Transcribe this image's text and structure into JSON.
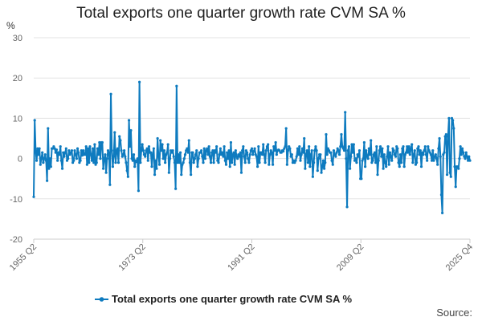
{
  "page": {
    "title": "Total exports one quarter growth rate CVM SA %"
  },
  "chart_data": {
    "type": "line",
    "title": "Total exports one quarter growth rate CVM SA %",
    "ylabel": "%",
    "xlabel": "",
    "ylim": [
      -20,
      30
    ],
    "yticks": [
      30,
      20,
      10,
      0,
      -10,
      -20
    ],
    "x_start": "1955 Q2",
    "x_end": "2025 Q4",
    "xtick_labels": [
      "1955 Q2",
      "1973 Q2",
      "1991 Q2",
      "2009 Q2",
      "2025 Q4"
    ],
    "grid": true,
    "legend_position": "bottom",
    "line_color": "#0e7bbf",
    "series": [
      {
        "name": "Total exports one quarter growth rate CVM SA %",
        "values": [
          -9.5,
          9.5,
          2,
          -0.5,
          2.5,
          1,
          2.5,
          -1.5,
          0,
          1.5,
          -1,
          0,
          1,
          -0.5,
          -5.5,
          7.5,
          -2.5,
          0,
          -2,
          2.5,
          2.5,
          3,
          2.5,
          1.5,
          2.2,
          -0.5,
          1.5,
          1,
          3,
          -0.5,
          -2.5,
          1.5,
          0.5,
          1.5,
          2.5,
          -0.5,
          0,
          2,
          1,
          1.5,
          2,
          -1,
          -0.5,
          2,
          1,
          0,
          2.5,
          1.5,
          -1,
          -0.5,
          2,
          0.8,
          2,
          1,
          1,
          3,
          -1.5,
          2.5,
          -1,
          3,
          1,
          -0.5,
          2.5,
          -1,
          3.5,
          -1.5,
          -1,
          2.5,
          1,
          4,
          0,
          4,
          4,
          -2.5,
          0,
          1,
          -3.5,
          0,
          2,
          1.5,
          -6.5,
          16,
          2,
          -2,
          0.5,
          6.5,
          -1,
          2,
          2.5,
          -1,
          5.5,
          4.5,
          2,
          0.5,
          1,
          2,
          0.5,
          -1,
          -3,
          -4.5,
          9.5,
          3,
          7,
          0,
          -0.5,
          1,
          -2,
          -0.5,
          -0.8,
          0,
          -8,
          19,
          -1,
          2,
          3.5,
          2,
          1,
          0.5,
          2,
          2.5,
          -0.5,
          3,
          1.5,
          1.5,
          -2,
          1,
          2.5,
          -4,
          -0.5,
          -2.5,
          5,
          0.5,
          -1.5,
          4.5,
          2,
          3.5,
          0,
          2,
          -1,
          1,
          1.5,
          3.5,
          -3.5,
          0,
          2,
          1.5,
          2,
          0.5,
          -1,
          -7.5,
          18,
          -1,
          1,
          -1,
          1.5,
          -4,
          -1.5,
          -1,
          0,
          1,
          2,
          2.5,
          1.5,
          4.5,
          -1,
          -4,
          1.5,
          1.5,
          -1,
          0,
          1,
          2,
          -2,
          0,
          1.5,
          1.5,
          2,
          0.5,
          -1,
          2.5,
          0,
          2,
          2.5,
          1,
          3,
          0.5,
          -1,
          1.5,
          2,
          -1,
          2,
          1.5,
          3,
          -0.5,
          -1,
          1,
          2.5,
          1,
          1.5,
          0.5,
          3,
          -0.5,
          -1.5,
          1.5,
          0,
          2,
          -2,
          4,
          -1,
          1,
          1.5,
          -1.5,
          2,
          0.5,
          0,
          1,
          0.5,
          1.5,
          -3.5,
          2,
          3,
          0.5,
          -1,
          2,
          1.5,
          0,
          -1,
          1,
          2,
          2.5,
          1,
          1.8,
          2.5,
          1,
          0.5,
          -2,
          3,
          -1,
          1.5,
          1.5,
          1,
          3.5,
          1,
          -1,
          2,
          3,
          3.5,
          -1.5,
          1,
          2,
          1.5,
          -1.5,
          3,
          2,
          4,
          1,
          2,
          2.2,
          2,
          1.5,
          1.5,
          2,
          1.8,
          2.5,
          3,
          7.5,
          -1.5,
          2,
          3,
          2.5,
          0.5,
          1,
          -1,
          -0.5,
          -1,
          -0.5,
          0.5,
          2.5,
          1,
          3,
          -0.5,
          1,
          2.5,
          1.5,
          5,
          -2.5,
          1,
          2,
          -1,
          3,
          -2,
          1,
          2,
          -4.5,
          -1,
          2,
          3,
          2,
          -3,
          0,
          1,
          1,
          -3.5,
          -2,
          -0.5,
          -2.5,
          -1,
          6,
          1,
          2.5,
          2,
          1.5,
          1.5,
          -0.5,
          -1.5,
          2,
          1,
          0.5,
          1.5,
          2.5,
          2,
          1,
          3,
          6,
          3,
          2.5,
          2,
          11.5,
          0,
          -12,
          2,
          3,
          -2.5,
          0.5,
          3.5,
          1.5,
          3.5,
          -0.5,
          0,
          -1,
          1,
          0.5,
          2,
          -5,
          -5,
          -0.5,
          0,
          4,
          -2,
          2,
          0.5,
          0,
          2.5,
          1,
          4.5,
          -1,
          -0.5,
          1,
          1.5,
          -1,
          3,
          -4,
          -0.5,
          2,
          3,
          0.5,
          2.5,
          -2.5,
          1,
          -1,
          -2,
          0.5,
          3,
          -1.5,
          1.5,
          0.5,
          -0.5,
          2.5,
          2,
          1,
          0.5,
          3,
          2.5,
          -1,
          -2,
          1,
          -1,
          2.5,
          3,
          -2,
          1,
          1.5,
          3,
          1.5,
          3,
          1,
          2.5,
          3.5,
          -1,
          1,
          2,
          -1.5,
          -1,
          2.5,
          3,
          1,
          2,
          -2,
          1.5,
          1,
          2,
          3,
          1,
          -0.5,
          3,
          2,
          1.5,
          1,
          -0.5,
          2,
          -0.5,
          0.5,
          1,
          0,
          -1.5,
          2.5,
          5,
          0.5,
          -9,
          -13.5,
          1,
          1.5,
          5.5,
          6,
          -4,
          5.5,
          10,
          -3.5,
          -4.5,
          10,
          9.5,
          7.5,
          -2,
          -7,
          -2,
          -2,
          -2.5,
          0,
          3,
          1,
          2.5,
          1.5,
          0.5,
          0,
          1.5,
          0.5,
          -0.5,
          0.5,
          -0.5
        ]
      }
    ],
    "legend": [
      "Total exports one quarter growth rate CVM SA %"
    ]
  },
  "footer": {
    "source_label": "Source:"
  }
}
